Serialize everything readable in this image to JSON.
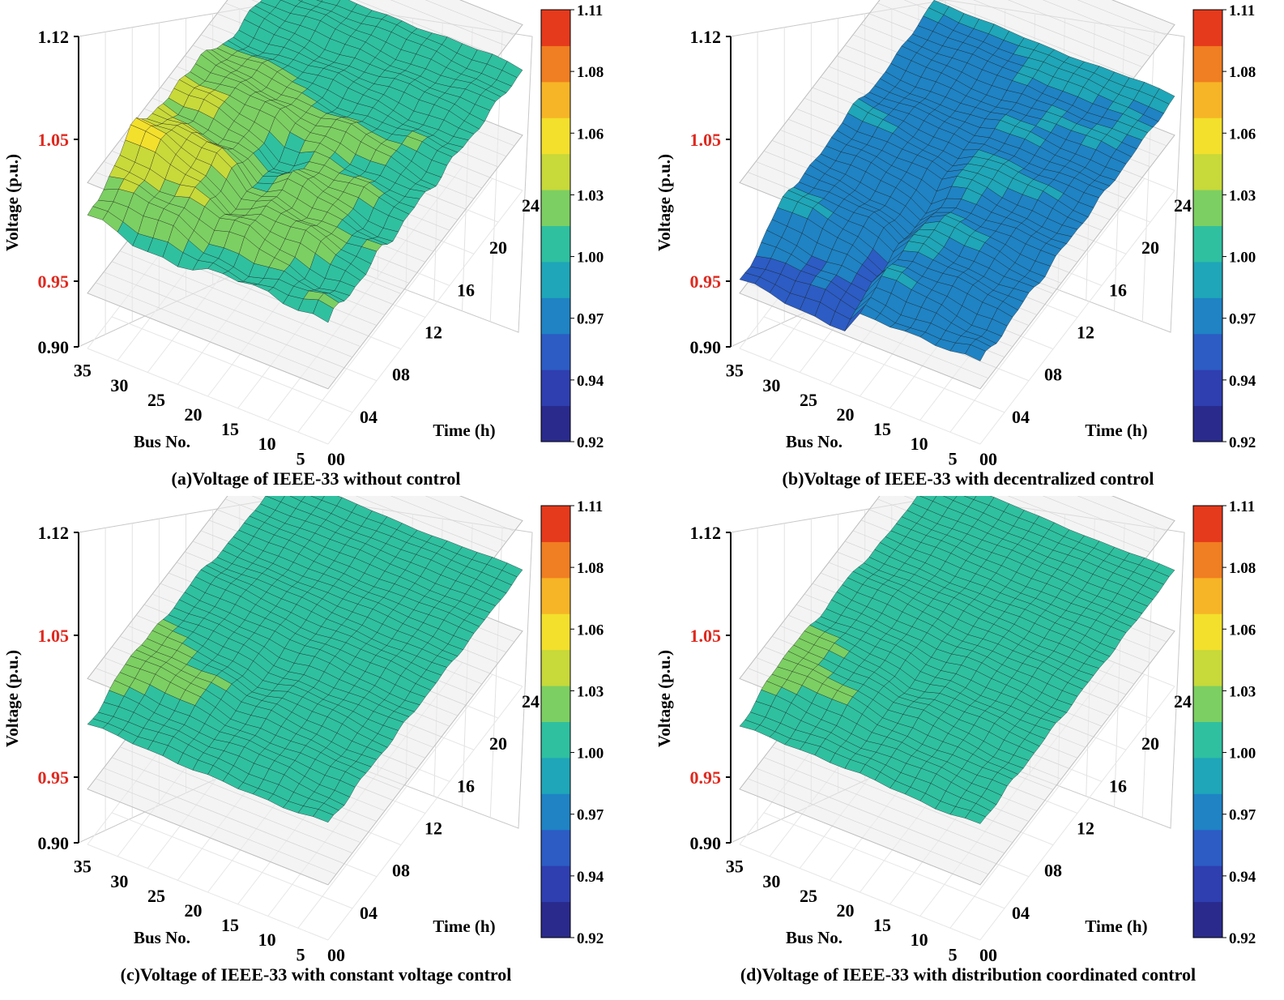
{
  "colors": {
    "red_label": "#e0281e",
    "colormap": [
      "#2a2a8c",
      "#2f3fb0",
      "#2c5cc4",
      "#1f83c4",
      "#1fa6b8",
      "#2fc0a0",
      "#7ccf62",
      "#c8d93a",
      "#f3e02c",
      "#f6b526",
      "#f07e22",
      "#e53a1c"
    ]
  },
  "charts": [
    {
      "caption": "(a)Voltage of IEEE-33 without control",
      "peak": 1.105,
      "amp": 0.9,
      "base": 1.01
    },
    {
      "caption": "(b)Voltage of IEEE-33 with decentralized control",
      "peak": 1.045,
      "amp": 0.55,
      "base": 0.985
    },
    {
      "caption": "(c)Voltage of IEEE-33 with constant voltage control",
      "peak": 1.04,
      "amp": 0.35,
      "base": 1.005
    },
    {
      "caption": "(d)Voltage of IEEE-33 with distribution coordinated control",
      "peak": 1.035,
      "amp": 0.32,
      "base": 1.005
    }
  ],
  "chart_data": [
    {
      "type": "surface",
      "title": "(a)Voltage of IEEE-33 without control",
      "zlabel": "Voltage (p.u.)",
      "xlabel": "Bus No.",
      "ylabel": "Time (h)",
      "z_ticks": [
        "1.12",
        "1.05",
        "0.95",
        "0.90"
      ],
      "z_red_ticks": [
        "1.05",
        "0.95"
      ],
      "bus_ticks": [
        "35",
        "30",
        "25",
        "20",
        "15",
        "10",
        "5"
      ],
      "time_ticks": [
        "00",
        "04",
        "08",
        "12",
        "16",
        "20",
        "24"
      ],
      "colorbar_ticks": [
        "1.11",
        "1.08",
        "1.06",
        "1.03",
        "1.00",
        "0.97",
        "0.94",
        "0.92"
      ],
      "zlim": [
        0.9,
        1.12
      ],
      "limit_planes": [
        1.05,
        0.95
      ],
      "voltage_range": [
        0.93,
        1.105
      ]
    },
    {
      "type": "surface",
      "title": "(b)Voltage of IEEE-33 with decentralized control",
      "zlabel": "Voltage (p.u.)",
      "xlabel": "Bus No.",
      "ylabel": "Time (h)",
      "z_ticks": [
        "1.12",
        "1.05",
        "0.95",
        "0.90"
      ],
      "z_red_ticks": [
        "1.05",
        "0.95"
      ],
      "bus_ticks": [
        "35",
        "30",
        "25",
        "20",
        "15",
        "10",
        "5"
      ],
      "time_ticks": [
        "00",
        "04",
        "08",
        "12",
        "16",
        "20",
        "24"
      ],
      "colorbar_ticks": [
        "1.11",
        "1.08",
        "1.06",
        "1.03",
        "1.00",
        "0.97",
        "0.94",
        "0.92"
      ],
      "zlim": [
        0.9,
        1.12
      ],
      "limit_planes": [
        1.05,
        0.95
      ],
      "voltage_range": [
        0.9,
        1.045
      ]
    },
    {
      "type": "surface",
      "title": "(c)Voltage of IEEE-33 with constant voltage control",
      "zlabel": "Voltage (p.u.)",
      "xlabel": "Bus No.",
      "ylabel": "Time (h)",
      "z_ticks": [
        "1.12",
        "1.05",
        "0.95",
        "0.90"
      ],
      "z_red_ticks": [
        "1.05",
        "0.95"
      ],
      "bus_ticks": [
        "35",
        "30",
        "25",
        "20",
        "15",
        "10",
        "5"
      ],
      "time_ticks": [
        "00",
        "04",
        "08",
        "12",
        "16",
        "20",
        "24"
      ],
      "colorbar_ticks": [
        "1.11",
        "1.08",
        "1.06",
        "1.03",
        "1.00",
        "0.97",
        "0.94",
        "0.92"
      ],
      "zlim": [
        0.9,
        1.12
      ],
      "limit_planes": [
        1.05,
        0.95
      ],
      "voltage_range": [
        0.94,
        1.04
      ]
    },
    {
      "type": "surface",
      "title": "(d)Voltage of IEEE-33 with distribution coordinated control",
      "zlabel": "Voltage (p.u.)",
      "xlabel": "Bus No.",
      "ylabel": "Time (h)",
      "z_ticks": [
        "1.12",
        "1.05",
        "0.95",
        "0.90"
      ],
      "z_red_ticks": [
        "1.05",
        "0.95"
      ],
      "bus_ticks": [
        "35",
        "30",
        "25",
        "20",
        "15",
        "10",
        "5"
      ],
      "time_ticks": [
        "00",
        "04",
        "08",
        "12",
        "16",
        "20",
        "24"
      ],
      "colorbar_ticks": [
        "1.11",
        "1.08",
        "1.06",
        "1.03",
        "1.00",
        "0.97",
        "0.94",
        "0.92"
      ],
      "zlim": [
        0.9,
        1.12
      ],
      "limit_planes": [
        1.05,
        0.95
      ],
      "voltage_range": [
        0.945,
        1.035
      ]
    }
  ]
}
